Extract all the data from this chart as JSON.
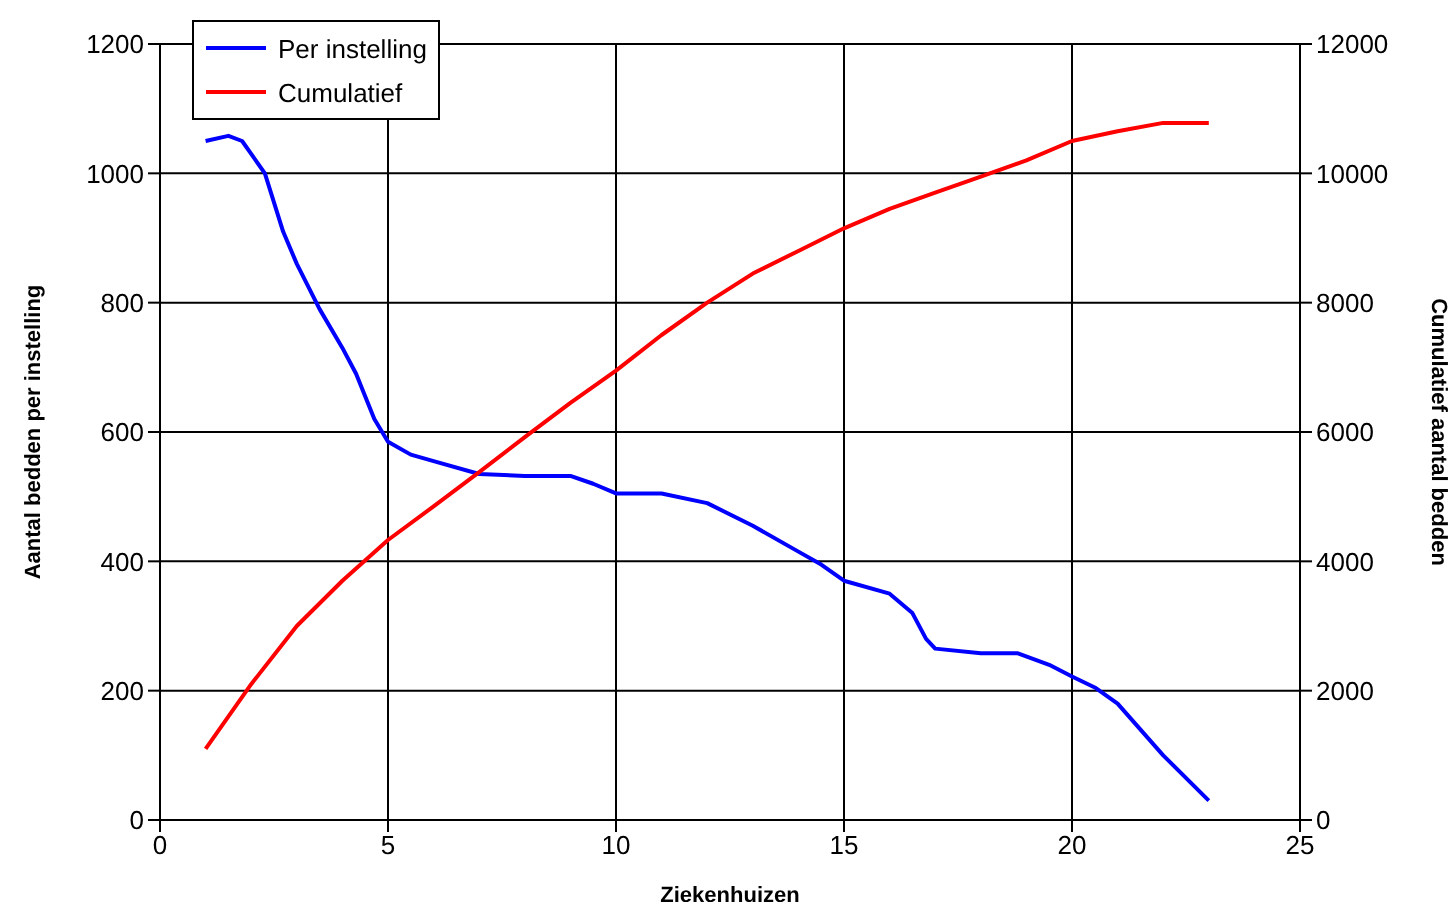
{
  "chart_data": {
    "type": "line",
    "xlabel": "Ziekenhuizen",
    "ylabel": "Aantal bedden per instelling",
    "y2label": "Cumulatief aantal bedden",
    "xlim": [
      0,
      25
    ],
    "xticks": [
      0,
      5,
      10,
      15,
      20,
      25
    ],
    "ylim": [
      0,
      1200
    ],
    "yticks": [
      0,
      200,
      400,
      600,
      800,
      1000,
      1200
    ],
    "y2lim": [
      0,
      12000
    ],
    "y2ticks": [
      0,
      2000,
      4000,
      6000,
      8000,
      10000,
      12000
    ],
    "grid": true,
    "legend": "top left",
    "marker": "none",
    "line_style": "solid",
    "series": [
      {
        "name": "Per instelling",
        "color": "#0000ff",
        "x": [
          1,
          1.5,
          1.8,
          2,
          2.3,
          2.7,
          3,
          3.5,
          4,
          4.3,
          4.7,
          5,
          5.5,
          6,
          7,
          8,
          9,
          9.5,
          10,
          11,
          12,
          13,
          14,
          14.5,
          15,
          16,
          16.5,
          16.8,
          17,
          18,
          18.8,
          19.5,
          20,
          20.5,
          21,
          22,
          23
        ],
        "values": [
          1050,
          1058,
          1050,
          1030,
          1000,
          910,
          860,
          790,
          730,
          690,
          620,
          585,
          565,
          555,
          535,
          532,
          532,
          520,
          505,
          505,
          490,
          455,
          415,
          395,
          370,
          350,
          320,
          280,
          265,
          258,
          258,
          240,
          222,
          205,
          180,
          100,
          30
        ]
      },
      {
        "name": "Cumulatief",
        "color": "#ff0000",
        "axis": "y2",
        "x": [
          1,
          2,
          3,
          4,
          5,
          6,
          7,
          8,
          9,
          10,
          11,
          12,
          13,
          14,
          15,
          16,
          17,
          18,
          19,
          20,
          21,
          22,
          23
        ],
        "values": [
          1100,
          2100,
          3000,
          3700,
          4330,
          4850,
          5380,
          5920,
          6450,
          6950,
          7500,
          8000,
          8450,
          8800,
          9150,
          9450,
          9700,
          9950,
          10200,
          10500,
          10650,
          10780,
          10780
        ]
      }
    ]
  }
}
